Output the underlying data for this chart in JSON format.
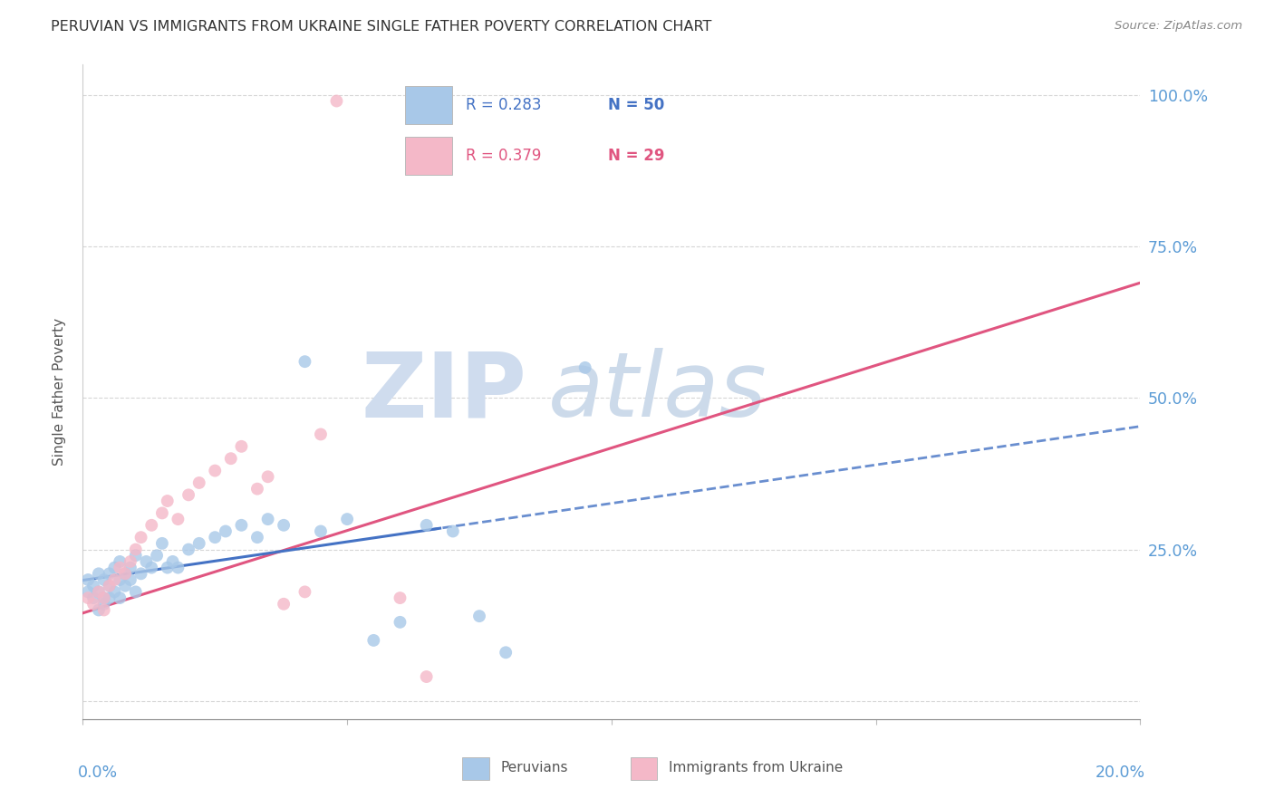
{
  "title": "PERUVIAN VS IMMIGRANTS FROM UKRAINE SINGLE FATHER POVERTY CORRELATION CHART",
  "source": "Source: ZipAtlas.com",
  "ylabel": "Single Father Poverty",
  "yticks": [
    0.0,
    0.25,
    0.5,
    0.75,
    1.0
  ],
  "ytick_labels": [
    "",
    "25.0%",
    "50.0%",
    "75.0%",
    "100.0%"
  ],
  "color_peru": "#a8c8e8",
  "color_ukraine": "#f4b8c8",
  "color_peru_line": "#4472c4",
  "color_ukraine_line": "#e05580",
  "watermark_zip_color": "#d0dff0",
  "watermark_atlas_color": "#c8d8ec",
  "xlim": [
    0.0,
    0.2
  ],
  "ylim": [
    -0.03,
    1.05
  ],
  "peruvian_x": [
    0.001,
    0.001,
    0.002,
    0.002,
    0.003,
    0.003,
    0.003,
    0.004,
    0.004,
    0.004,
    0.005,
    0.005,
    0.005,
    0.006,
    0.006,
    0.007,
    0.007,
    0.007,
    0.008,
    0.008,
    0.009,
    0.009,
    0.01,
    0.01,
    0.011,
    0.012,
    0.013,
    0.014,
    0.015,
    0.016,
    0.017,
    0.018,
    0.02,
    0.022,
    0.025,
    0.027,
    0.03,
    0.033,
    0.035,
    0.038,
    0.042,
    0.045,
    0.05,
    0.055,
    0.06,
    0.065,
    0.07,
    0.075,
    0.08,
    0.095
  ],
  "peruvian_y": [
    0.18,
    0.2,
    0.17,
    0.19,
    0.18,
    0.21,
    0.15,
    0.17,
    0.2,
    0.16,
    0.19,
    0.21,
    0.17,
    0.22,
    0.18,
    0.2,
    0.17,
    0.23,
    0.21,
    0.19,
    0.22,
    0.2,
    0.24,
    0.18,
    0.21,
    0.23,
    0.22,
    0.24,
    0.26,
    0.22,
    0.23,
    0.22,
    0.25,
    0.26,
    0.27,
    0.28,
    0.29,
    0.27,
    0.3,
    0.29,
    0.56,
    0.28,
    0.3,
    0.1,
    0.13,
    0.29,
    0.28,
    0.14,
    0.08,
    0.55
  ],
  "ukraine_x": [
    0.001,
    0.002,
    0.003,
    0.004,
    0.004,
    0.005,
    0.006,
    0.007,
    0.008,
    0.009,
    0.01,
    0.011,
    0.013,
    0.015,
    0.016,
    0.018,
    0.02,
    0.022,
    0.025,
    0.028,
    0.03,
    0.033,
    0.035,
    0.038,
    0.042,
    0.045,
    0.048,
    0.06,
    0.065
  ],
  "ukraine_y": [
    0.17,
    0.16,
    0.18,
    0.17,
    0.15,
    0.19,
    0.2,
    0.22,
    0.21,
    0.23,
    0.25,
    0.27,
    0.29,
    0.31,
    0.33,
    0.3,
    0.34,
    0.36,
    0.38,
    0.4,
    0.42,
    0.35,
    0.37,
    0.16,
    0.18,
    0.44,
    0.99,
    0.17,
    0.04
  ],
  "peru_line_x": [
    0.0,
    0.07
  ],
  "peru_line_solid_end": 0.07,
  "ukraine_line_x": [
    0.001,
    0.2
  ],
  "ukraine_line_y": [
    0.155,
    0.68
  ]
}
